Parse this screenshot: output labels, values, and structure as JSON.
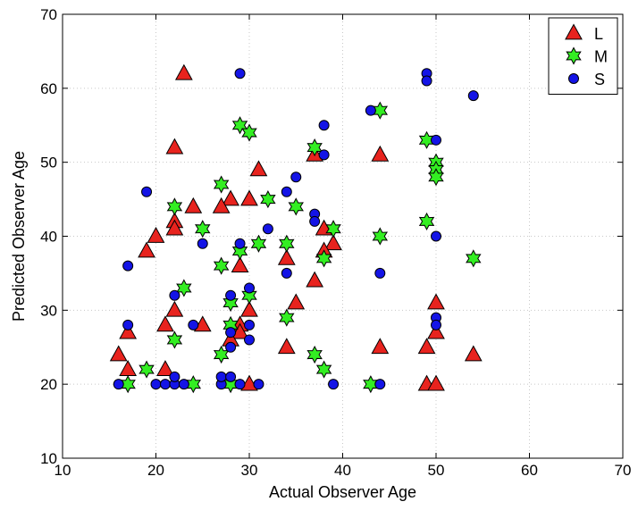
{
  "chart_data": {
    "type": "scatter",
    "xlabel": "Actual Observer Age",
    "ylabel": "Predicted Observer Age",
    "xlim": [
      10,
      70
    ],
    "ylim": [
      10,
      70
    ],
    "xticks": [
      10,
      20,
      30,
      40,
      50,
      60,
      70
    ],
    "yticks": [
      10,
      20,
      30,
      40,
      50,
      60,
      70
    ],
    "grid": true,
    "legend_placement": "top-right",
    "series": [
      {
        "name": "L",
        "marker": "triangle",
        "color": "#e8231e",
        "points": [
          [
            23,
            62
          ],
          [
            22,
            52
          ],
          [
            37,
            51
          ],
          [
            44,
            51
          ],
          [
            31,
            49
          ],
          [
            28,
            45
          ],
          [
            30,
            45
          ],
          [
            24,
            44
          ],
          [
            27,
            44
          ],
          [
            22,
            42
          ],
          [
            22,
            41
          ],
          [
            38,
            41
          ],
          [
            20,
            40
          ],
          [
            39,
            39
          ],
          [
            19,
            38
          ],
          [
            38,
            38
          ],
          [
            34,
            37
          ],
          [
            29,
            36
          ],
          [
            37,
            34
          ],
          [
            35,
            31
          ],
          [
            50,
            31
          ],
          [
            22,
            30
          ],
          [
            30,
            30
          ],
          [
            25,
            28
          ],
          [
            29,
            28
          ],
          [
            21,
            28
          ],
          [
            29,
            27
          ],
          [
            17,
            27
          ],
          [
            50,
            27
          ],
          [
            28,
            26
          ],
          [
            34,
            25
          ],
          [
            44,
            25
          ],
          [
            49,
            25
          ],
          [
            16,
            24
          ],
          [
            54,
            24
          ],
          [
            17,
            22
          ],
          [
            21,
            22
          ],
          [
            30,
            20
          ],
          [
            49,
            20
          ],
          [
            50,
            20
          ]
        ]
      },
      {
        "name": "M",
        "marker": "star",
        "color": "#33ee22",
        "points": [
          [
            44,
            57
          ],
          [
            29,
            55
          ],
          [
            30,
            54
          ],
          [
            49,
            53
          ],
          [
            37,
            52
          ],
          [
            50,
            50
          ],
          [
            50,
            49
          ],
          [
            50,
            48
          ],
          [
            27,
            47
          ],
          [
            32,
            45
          ],
          [
            22,
            44
          ],
          [
            35,
            44
          ],
          [
            25,
            41
          ],
          [
            39,
            41
          ],
          [
            34,
            39
          ],
          [
            31,
            39
          ],
          [
            44,
            40
          ],
          [
            29,
            38
          ],
          [
            49,
            42
          ],
          [
            54,
            37
          ],
          [
            38,
            37
          ],
          [
            27,
            36
          ],
          [
            23,
            33
          ],
          [
            30,
            32
          ],
          [
            28,
            31
          ],
          [
            22,
            26
          ],
          [
            34,
            29
          ],
          [
            28,
            28
          ],
          [
            27,
            24
          ],
          [
            37,
            24
          ],
          [
            19,
            22
          ],
          [
            38,
            22
          ],
          [
            17,
            20
          ],
          [
            24,
            20
          ],
          [
            28,
            20
          ],
          [
            43,
            20
          ]
        ]
      },
      {
        "name": "S",
        "marker": "circle",
        "color": "#1414e6",
        "points": [
          [
            29,
            62
          ],
          [
            49,
            62
          ],
          [
            49,
            61
          ],
          [
            54,
            59
          ],
          [
            43,
            57
          ],
          [
            38,
            55
          ],
          [
            50,
            53
          ],
          [
            38,
            51
          ],
          [
            35,
            48
          ],
          [
            19,
            46
          ],
          [
            34,
            46
          ],
          [
            37,
            43
          ],
          [
            37,
            42
          ],
          [
            32,
            41
          ],
          [
            29,
            39
          ],
          [
            25,
            39
          ],
          [
            50,
            40
          ],
          [
            17,
            36
          ],
          [
            34,
            35
          ],
          [
            44,
            35
          ],
          [
            30,
            33
          ],
          [
            22,
            32
          ],
          [
            28,
            32
          ],
          [
            50,
            29
          ],
          [
            50,
            28
          ],
          [
            17,
            28
          ],
          [
            24,
            28
          ],
          [
            30,
            28
          ],
          [
            28,
            27
          ],
          [
            30,
            26
          ],
          [
            28,
            25
          ],
          [
            16,
            20
          ],
          [
            20,
            20
          ],
          [
            21,
            20
          ],
          [
            22,
            20
          ],
          [
            23,
            20
          ],
          [
            27,
            20
          ],
          [
            29,
            20
          ],
          [
            31,
            20
          ],
          [
            39,
            20
          ],
          [
            44,
            20
          ],
          [
            27,
            21
          ],
          [
            28,
            21
          ],
          [
            22,
            21
          ]
        ]
      }
    ]
  }
}
